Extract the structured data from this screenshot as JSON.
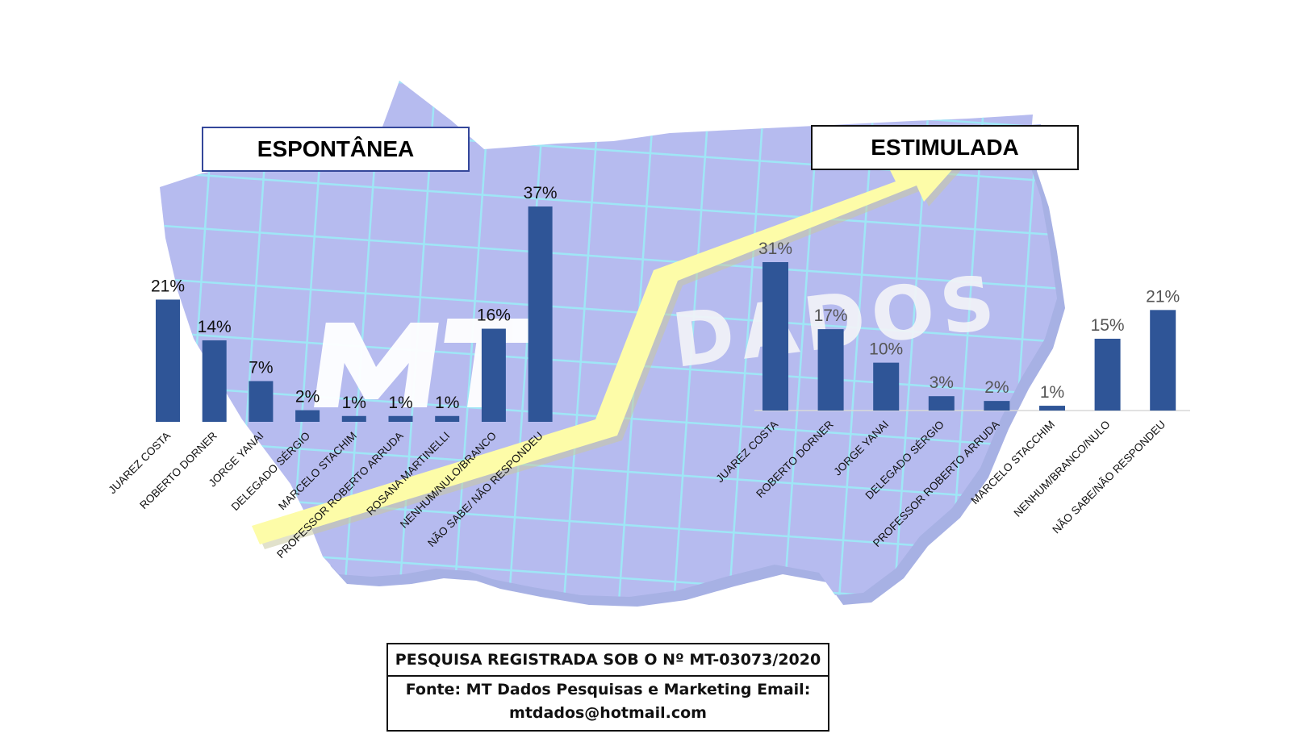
{
  "watermark": {
    "text_left": "MT",
    "text_right": "DADOS"
  },
  "colors": {
    "bar": "#2f5597",
    "map": "#b3b8ee",
    "grid": "#9fe6f6",
    "arrow": "#fdfca8",
    "label_left": "#111111",
    "label_right": "#555555"
  },
  "chart_data": [
    {
      "type": "bar",
      "title": "ESPONTÂNEA",
      "categories": [
        "JUAREZ COSTA",
        "ROBERTO DORNER",
        "JORGE YANAI",
        "DELEGADO SÉRGIO",
        "MARCELO STACHIM",
        "PROFESSOR ROBERTO ARRUDA",
        "ROSANA MARTINELLI",
        "NENHUM/NULO/BRANCO",
        "NÃO SABE/ NÃO RESPONDEU"
      ],
      "values": [
        21,
        14,
        7,
        2,
        1,
        1,
        1,
        16,
        37
      ],
      "data_labels": [
        "21%",
        "14%",
        "7%",
        "2%",
        "1%",
        "1%",
        "1%",
        "16%",
        "37%"
      ],
      "ylim": [
        0,
        37
      ],
      "grid": false
    },
    {
      "type": "bar",
      "title": "ESTIMULADA",
      "categories": [
        "JUAREZ COSTA",
        "ROBERTO DORNER",
        "JORGE YANAI",
        "DELEGADO SÉRGIO",
        "PROFESSOR ROBERTO ARRUDA",
        "MARCELO STACCHIM",
        "NENHUM/BRANCO/NULO",
        "NÃO SABE/NÃO RESPONDEU"
      ],
      "values": [
        31,
        17,
        10,
        3,
        2,
        1,
        15,
        21
      ],
      "data_labels": [
        "31%",
        "17%",
        "10%",
        "3%",
        "2%",
        "1%",
        "15%",
        "21%"
      ],
      "ylim": [
        0,
        31
      ],
      "grid": false
    }
  ],
  "footer": {
    "registration": "PESQUISA  REGISTRADA SOB O Nº MT-03073/2020",
    "source": "Fonte: MT Dados Pesquisas e Marketing Email: mtdados@hotmail.com"
  }
}
